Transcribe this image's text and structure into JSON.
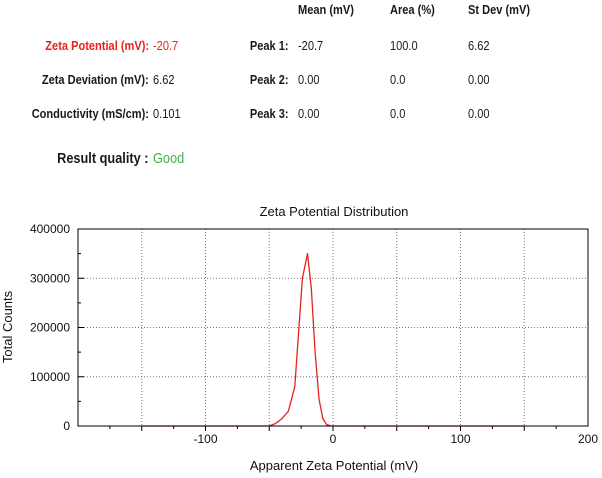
{
  "results": {
    "headers": {
      "mean": "Mean (mV)",
      "area": "Area (%)",
      "stdev": "St Dev (mV)"
    },
    "zeta_potential": {
      "label": "Zeta Potential (mV):",
      "value": "-20.7",
      "color": "#e8221b"
    },
    "zeta_deviation": {
      "label": "Zeta Deviation (mV):",
      "value": "6.62"
    },
    "conductivity": {
      "label": "Conductivity (mS/cm):",
      "value": "0.101"
    },
    "peaks": [
      {
        "label": "Peak 1:",
        "mean": "-20.7",
        "area": "100.0",
        "stdev": "6.62"
      },
      {
        "label": "Peak 2:",
        "mean": "0.00",
        "area": "0.0",
        "stdev": "0.00"
      },
      {
        "label": "Peak 3:",
        "mean": "0.00",
        "area": "0.0",
        "stdev": "0.00"
      }
    ],
    "quality": {
      "label": "Result quality :",
      "value": "Good",
      "color": "#3cb54a"
    }
  },
  "chart_data": {
    "type": "line",
    "title": "Zeta Potential Distribution",
    "xlabel": "Apparent Zeta Potential (mV)",
    "ylabel": "Total Counts",
    "xlim": [
      -200,
      200
    ],
    "ylim": [
      0,
      400000
    ],
    "x_ticks": [
      -100,
      0,
      100,
      200
    ],
    "y_ticks": [
      0,
      100000,
      200000,
      300000,
      400000
    ],
    "x_ticks_labels": [
      "-100",
      "0",
      "100",
      "200"
    ],
    "y_ticks_labels": [
      "0",
      "100000",
      "200000",
      "300000",
      "400000"
    ],
    "grid": true,
    "line_color": "#e8221b",
    "series": [
      {
        "x": [
          -150,
          -50,
          -45,
          -40,
          -35,
          -30,
          -27,
          -24,
          -20,
          -17,
          -14,
          -11,
          -8,
          -5,
          -2,
          0,
          5,
          150
        ],
        "y": [
          0,
          0,
          5000,
          15000,
          30000,
          80000,
          190000,
          300000,
          350000,
          280000,
          150000,
          55000,
          15000,
          3000,
          500,
          0,
          0,
          0
        ]
      }
    ]
  }
}
